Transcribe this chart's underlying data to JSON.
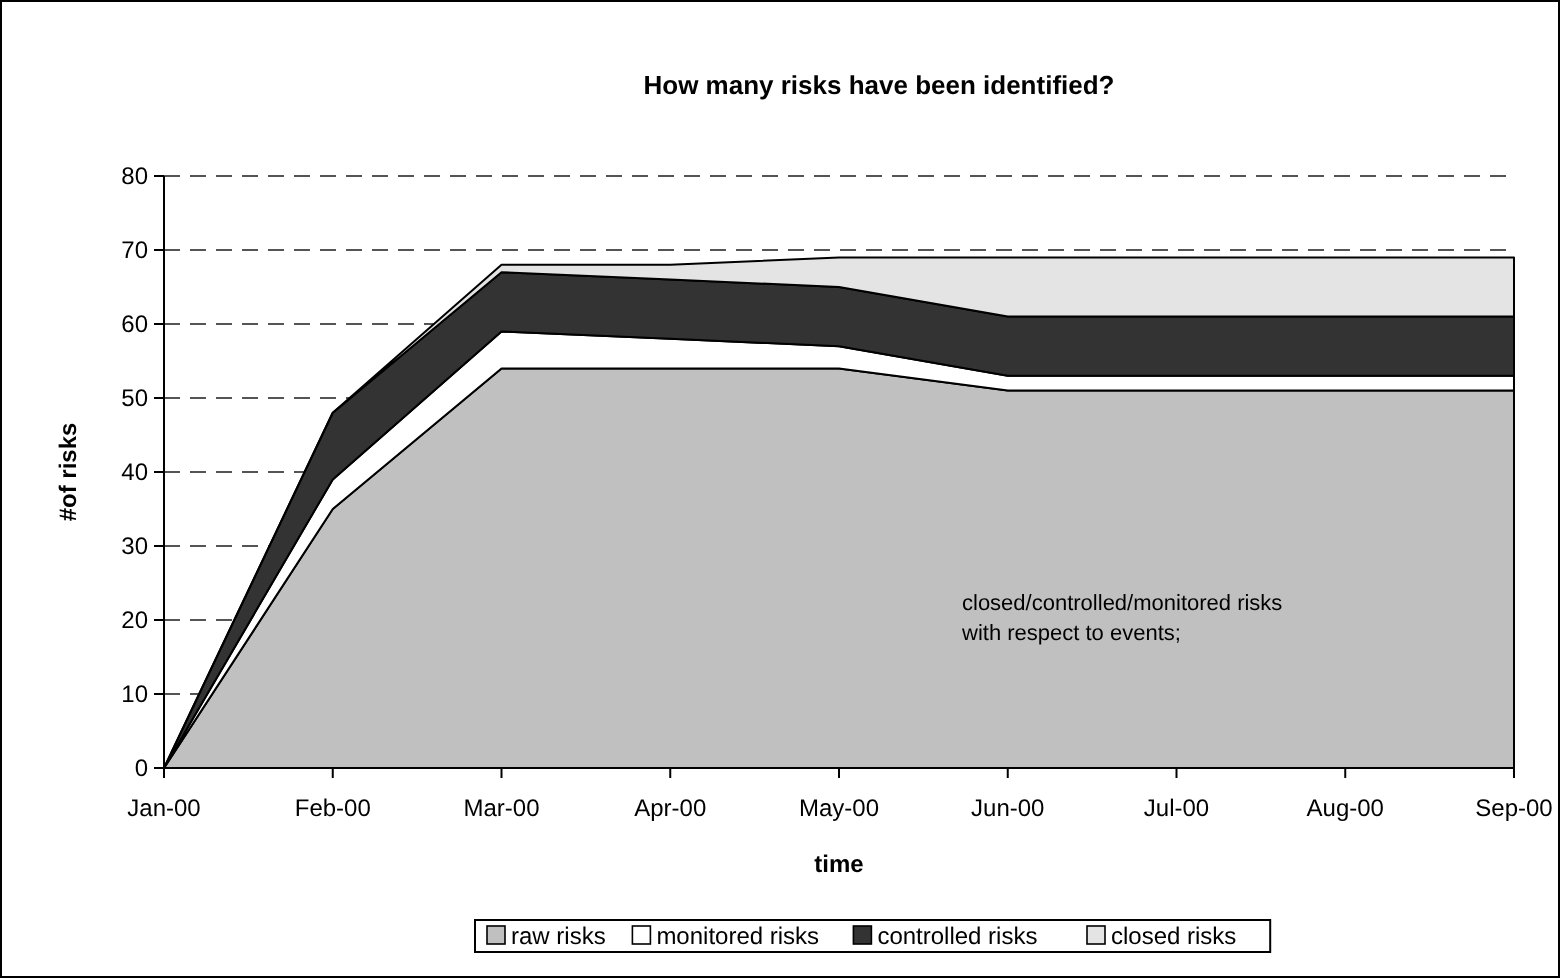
{
  "chart_data": {
    "type": "area",
    "stacked": true,
    "title": "How many risks have been identified?",
    "xlabel": "time",
    "ylabel": "#of risks",
    "categories": [
      "Jan-00",
      "Feb-00",
      "Mar-00",
      "Apr-00",
      "May-00",
      "Jun-00",
      "Jul-00",
      "Aug-00",
      "Sep-00"
    ],
    "series": [
      {
        "name": "raw risks",
        "color": "#c0c0c0",
        "values": [
          0,
          35,
          54,
          54,
          54,
          51,
          51,
          51,
          51
        ]
      },
      {
        "name": "monitored risks",
        "color": "#ffffff",
        "values": [
          0,
          4,
          5,
          4,
          3,
          2,
          2,
          2,
          2
        ]
      },
      {
        "name": "controlled risks",
        "color": "#333333",
        "values": [
          0,
          9,
          8,
          8,
          8,
          8,
          8,
          8,
          8
        ]
      },
      {
        "name": "closed risks",
        "color": "#e4e4e4",
        "values": [
          0,
          0,
          1,
          2,
          4,
          8,
          8,
          8,
          8
        ]
      }
    ],
    "ylim": [
      0,
      80
    ],
    "yticks": [
      0,
      10,
      20,
      30,
      40,
      50,
      60,
      70,
      80
    ],
    "grid": "y",
    "legend": "bottom",
    "annotations": [
      "closed/controlled/monitored risks\nwith respect to events;"
    ]
  }
}
